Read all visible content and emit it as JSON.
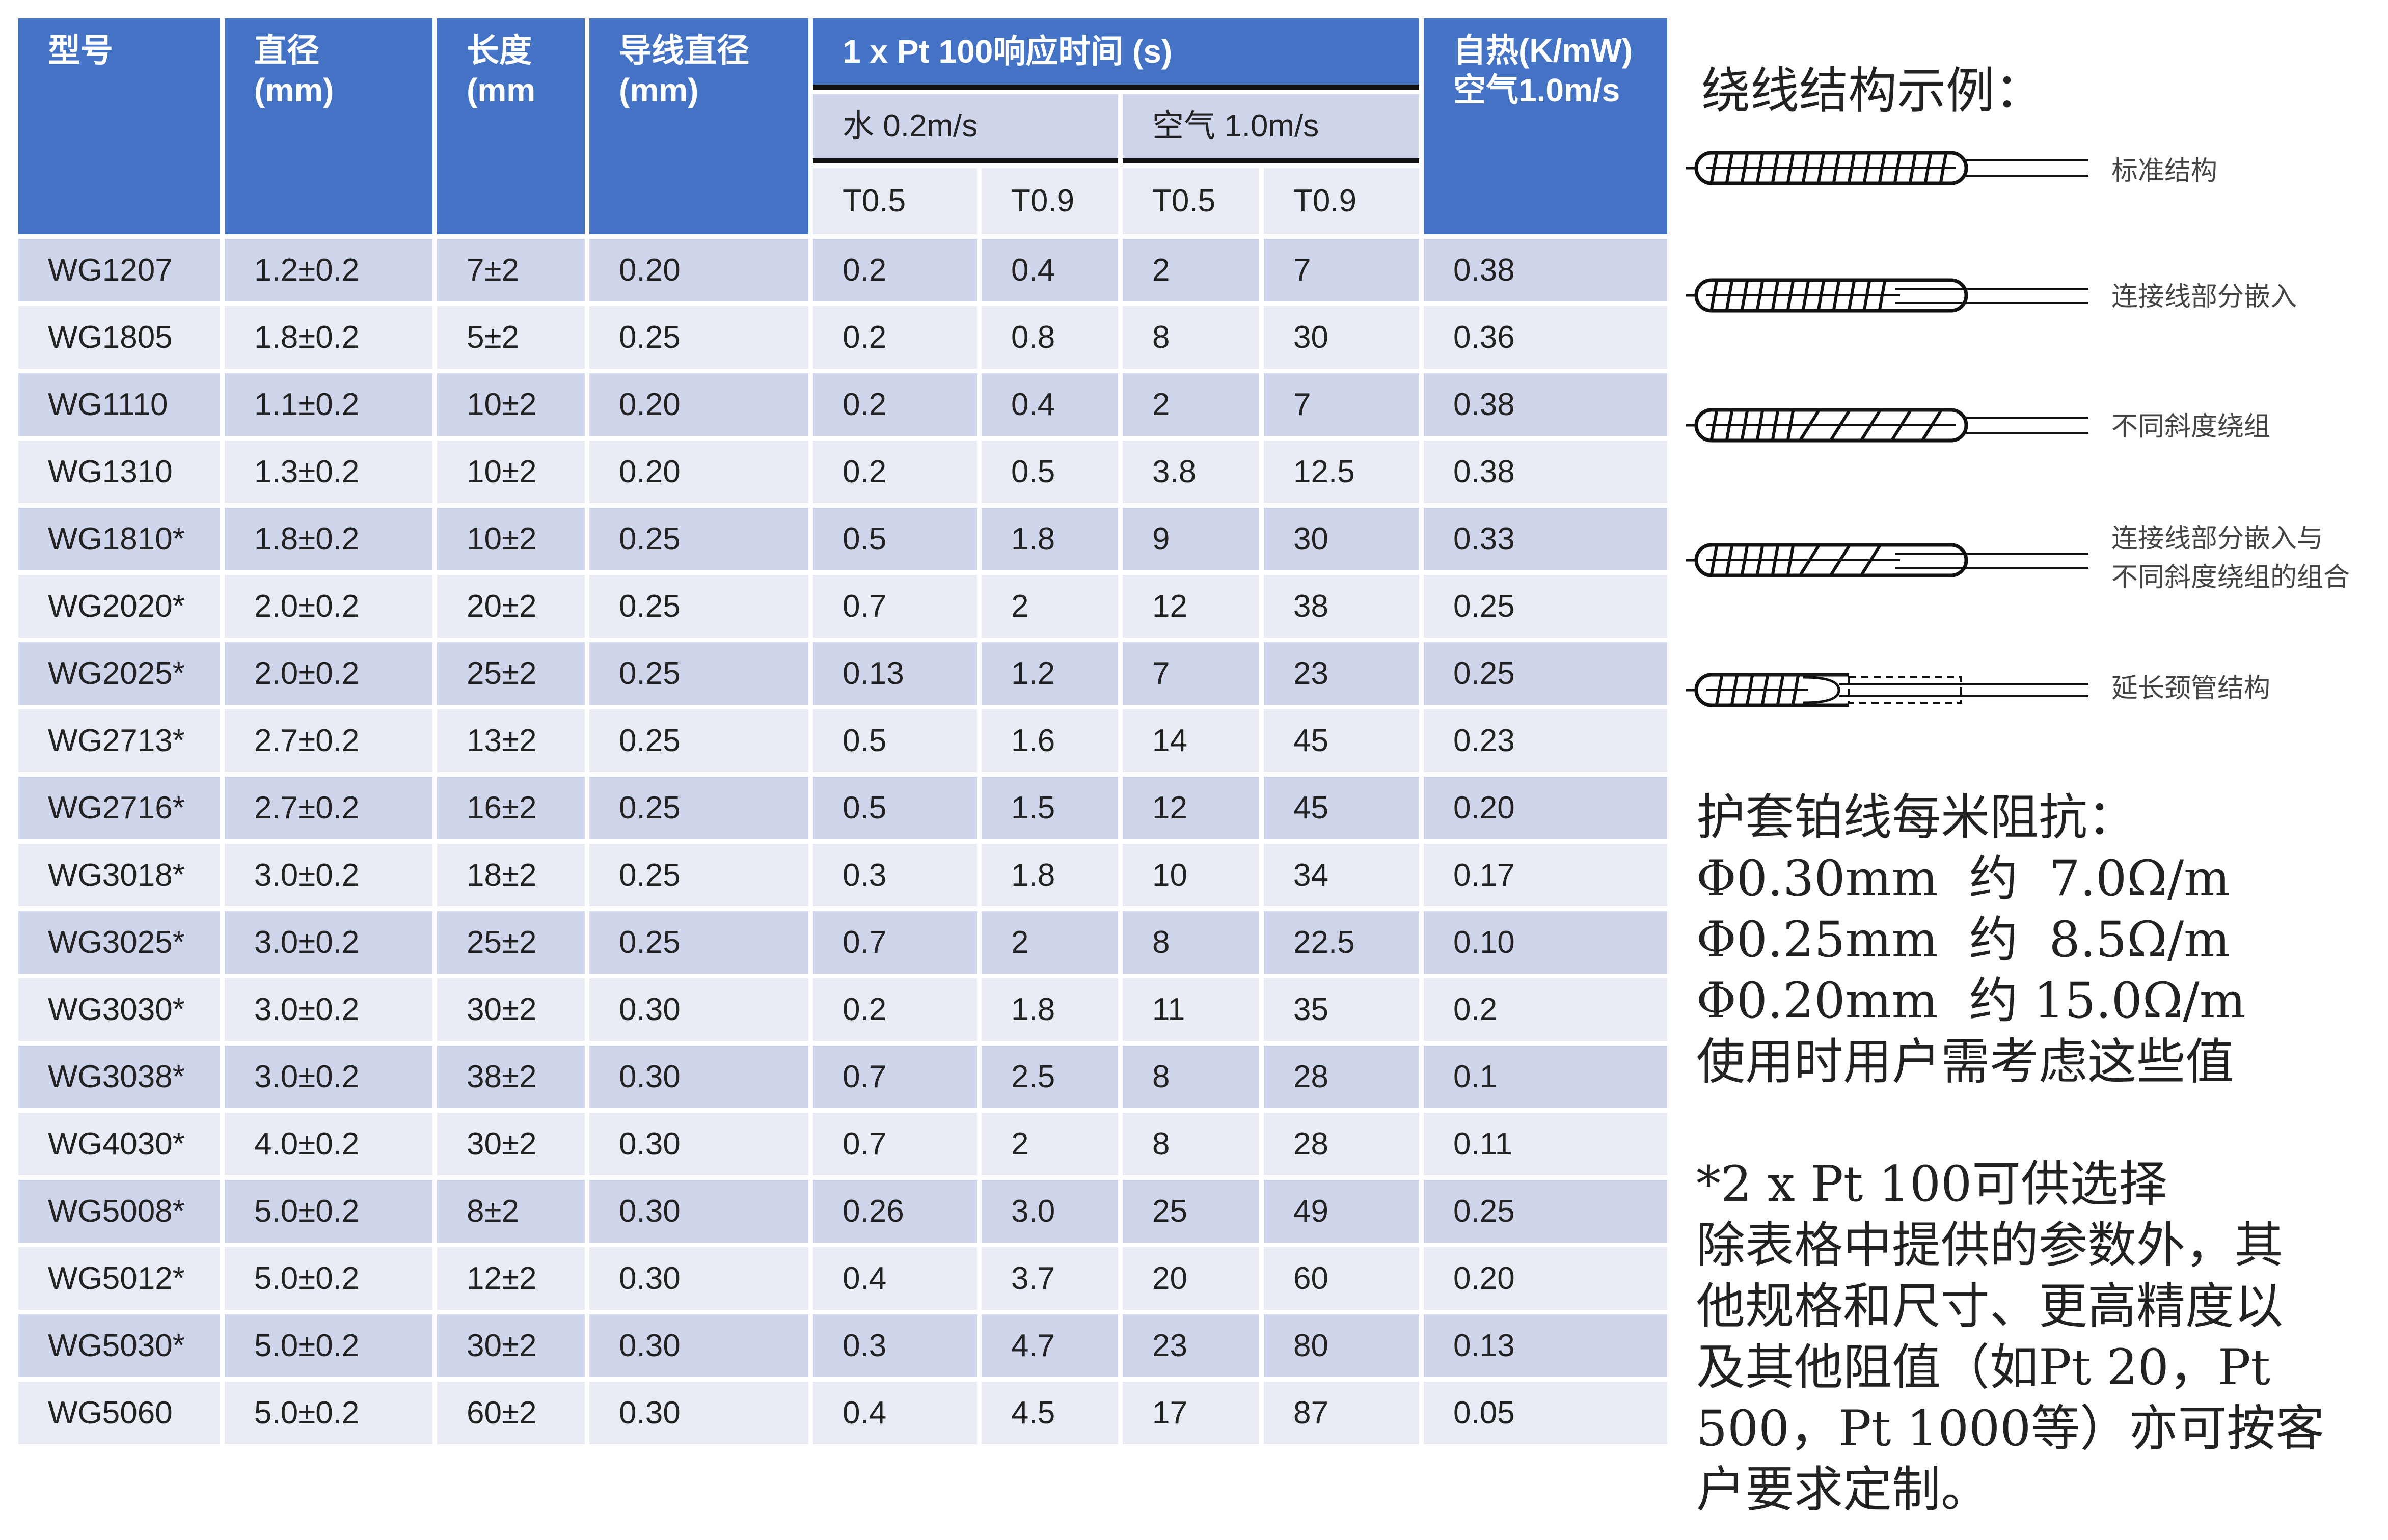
{
  "table": {
    "headers": {
      "model": "型号",
      "diameter": [
        "直径",
        "(mm)"
      ],
      "length": [
        "长度",
        "(mm"
      ],
      "lead_diameter": [
        "导线直径",
        "(mm)"
      ],
      "response_time": "1 x Pt 100响应时间 (s)",
      "water": "水 0.2m/s",
      "air": "空气 1.0m/s",
      "t05_water": "T0.5",
      "t09_water": "T0.9",
      "t05_air": "T0.5",
      "t09_air": "T0.9",
      "self_heating": [
        "自热(K/mW)",
        "空气1.0m/s"
      ]
    },
    "rows": [
      [
        "WG1207",
        "1.2±0.2",
        "7±2",
        "0.20",
        "0.2",
        "0.4",
        "2",
        "7",
        "0.38"
      ],
      [
        "WG1805",
        "1.8±0.2",
        "5±2",
        "0.25",
        "0.2",
        "0.8",
        "8",
        "30",
        "0.36"
      ],
      [
        "WG1110",
        "1.1±0.2",
        "10±2",
        "0.20",
        "0.2",
        "0.4",
        "2",
        "7",
        "0.38"
      ],
      [
        "WG1310",
        "1.3±0.2",
        "10±2",
        "0.20",
        "0.2",
        "0.5",
        "3.8",
        "12.5",
        "0.38"
      ],
      [
        "WG1810*",
        "1.8±0.2",
        "10±2",
        "0.25",
        "0.5",
        "1.8",
        "9",
        "30",
        "0.33"
      ],
      [
        "WG2020*",
        "2.0±0.2",
        "20±2",
        "0.25",
        "0.7",
        "2",
        "12",
        "38",
        "0.25"
      ],
      [
        "WG2025*",
        "2.0±0.2",
        "25±2",
        "0.25",
        "0.13",
        "1.2",
        "7",
        "23",
        "0.25"
      ],
      [
        "WG2713*",
        "2.7±0.2",
        "13±2",
        "0.25",
        "0.5",
        "1.6",
        "14",
        "45",
        "0.23"
      ],
      [
        "WG2716*",
        "2.7±0.2",
        "16±2",
        "0.25",
        "0.5",
        "1.5",
        "12",
        "45",
        "0.20"
      ],
      [
        "WG3018*",
        "3.0±0.2",
        "18±2",
        "0.25",
        "0.3",
        "1.8",
        "10",
        "34",
        "0.17"
      ],
      [
        "WG3025*",
        "3.0±0.2",
        "25±2",
        "0.25",
        "0.7",
        "2",
        "8",
        "22.5",
        "0.10"
      ],
      [
        "WG3030*",
        "3.0±0.2",
        "30±2",
        "0.30",
        "0.2",
        "1.8",
        "11",
        "35",
        "0.2"
      ],
      [
        "WG3038*",
        "3.0±0.2",
        "38±2",
        "0.30",
        "0.7",
        "2.5",
        "8",
        "28",
        "0.1"
      ],
      [
        "WG4030*",
        "4.0±0.2",
        "30±2",
        "0.30",
        "0.7",
        "2",
        "8",
        "28",
        "0.11"
      ],
      [
        "WG5008*",
        "5.0±0.2",
        "8±2",
        "0.30",
        "0.26",
        "3.0",
        "25",
        "49",
        "0.25"
      ],
      [
        "WG5012*",
        "5.0±0.2",
        "12±2",
        "0.30",
        "0.4",
        "3.7",
        "20",
        "60",
        "0.20"
      ],
      [
        "WG5030*",
        "5.0±0.2",
        "30±2",
        "0.30",
        "0.3",
        "4.7",
        "23",
        "80",
        "0.13"
      ],
      [
        "WG5060",
        "5.0±0.2",
        "60±2",
        "0.30",
        "0.4",
        "4.5",
        "17",
        "87",
        "0.05"
      ]
    ]
  },
  "diagrams": {
    "title": "绕线结构示例：",
    "items": [
      {
        "label": [
          "标准结构"
        ],
        "icon": "standard-winding-icon"
      },
      {
        "label": [
          "连接线部分嵌入"
        ],
        "icon": "partial-embedded-lead-icon"
      },
      {
        "label": [
          "不同斜度绕组"
        ],
        "icon": "variable-pitch-winding-icon"
      },
      {
        "label": [
          "连接线部分嵌入与",
          "不同斜度绕组的组合"
        ],
        "icon": "combined-winding-icon"
      },
      {
        "label": [
          "延长颈管结构"
        ],
        "icon": "extended-neck-icon"
      }
    ]
  },
  "resistance": {
    "heading": "护套铂线每米阻抗：",
    "lines": [
      "Φ0.30mm  约  7.0Ω/m",
      "Φ0.25mm  约  8.5Ω/m",
      "Φ0.20mm  约 15.0Ω/m"
    ],
    "note": "使用时用户需考虑这些值"
  },
  "footnote": {
    "lines": [
      "*2 x Pt 100可供选择",
      "除表格中提供的参数外，其",
      "他规格和尺寸、更高精度以",
      "及其他阻值（如Pt 20，Pt",
      "500，Pt 1000等）亦可按客",
      "户要求定制。"
    ]
  },
  "colors": {
    "header_blue": "#4472c4",
    "row_dark": "#cfd5ea",
    "row_light": "#e9ebf5"
  }
}
